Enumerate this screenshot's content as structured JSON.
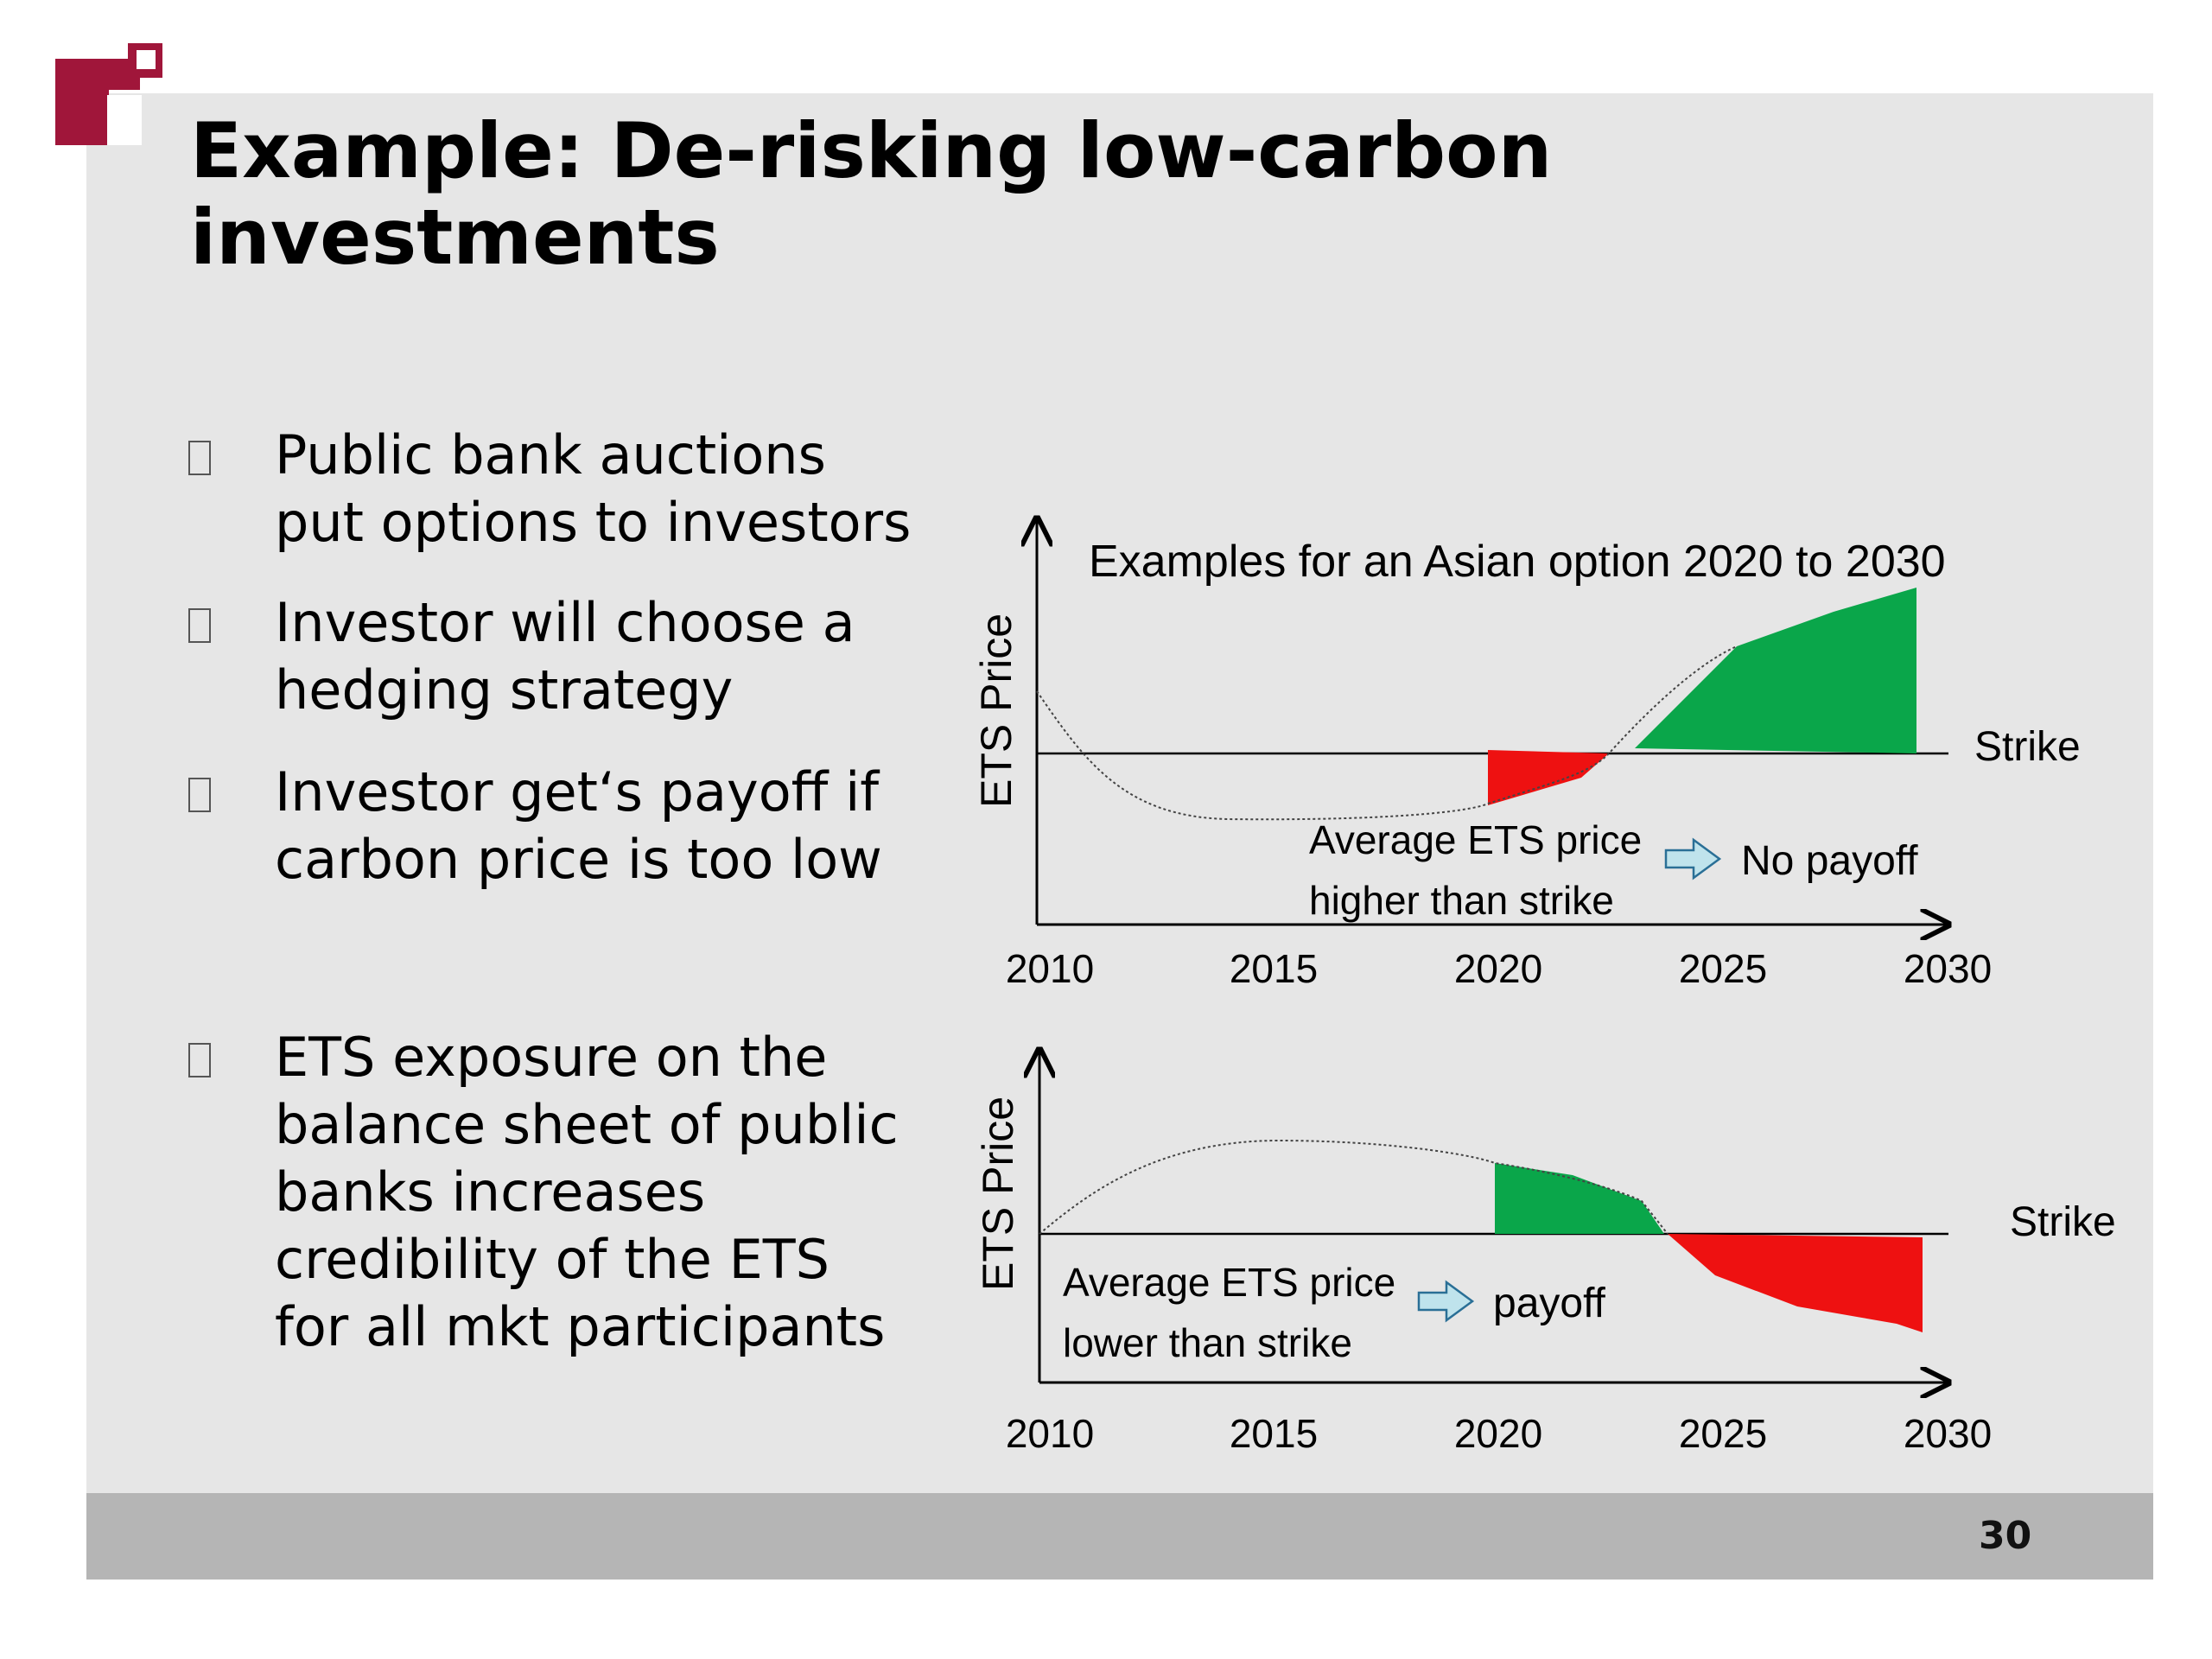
{
  "slide": {
    "title": "Example: De-risking low-carbon investments",
    "title_line1": "Example: De-risking low-carbon",
    "title_line2": "investments",
    "page_number": "30",
    "colors": {
      "brand": "#a0163a",
      "background": "#e6e6e6",
      "footer": "#b5b5b5",
      "gain": "#0aa64a",
      "loss": "#ee1111"
    }
  },
  "bullets": [
    {
      "text": "Public bank auctions\nput options to investors"
    },
    {
      "text": "Investor will choose a\nhedging strategy"
    },
    {
      "text": "Investor get‘s payoff if\ncarbon price is too low"
    },
    {
      "text": "ETS exposure on the\nbalance sheet of public\nbanks increases\ncredibility of the ETS\nfor all mkt participants"
    }
  ],
  "charts": {
    "top": {
      "title": "Examples for an Asian option 2020 to 2030",
      "ylabel": "ETS Price",
      "strike_label": "Strike",
      "annotation_line1": "Average ETS price",
      "annotation_line2": "higher than strike",
      "result": "No payoff",
      "x_ticks": [
        "2010",
        "2015",
        "2020",
        "2025",
        "2030"
      ]
    },
    "bottom": {
      "ylabel": "ETS Price",
      "strike_label": "Strike",
      "annotation_line1": "Average ETS price",
      "annotation_line2": "lower than strike",
      "result": "payoff",
      "x_ticks": [
        "2010",
        "2015",
        "2020",
        "2025",
        "2030"
      ]
    }
  },
  "chart_data": [
    {
      "type": "line",
      "title": "Examples for an Asian option 2020 to 2030",
      "xlabel": "",
      "ylabel": "ETS Price",
      "xlim": [
        2010,
        2030
      ],
      "x_ticks": [
        2010,
        2015,
        2020,
        2025,
        2030
      ],
      "strike": 0,
      "series": [
        {
          "x": [
            2010,
            2012,
            2014,
            2016,
            2018,
            2020,
            2022,
            2023,
            2025,
            2027,
            2030
          ],
          "values": [
            0.35,
            -0.15,
            -0.38,
            -0.42,
            -0.36,
            -0.3,
            -0.15,
            0.1,
            0.6,
            0.85,
            1.0
          ]
        }
      ],
      "shaded": [
        {
          "from": 2020,
          "to": 2023,
          "side": "below strike",
          "color": "#ee1111"
        },
        {
          "from": 2023,
          "to": 2030,
          "side": "above strike",
          "color": "#0aa64a"
        }
      ],
      "legend": "none",
      "grid": false
    },
    {
      "type": "line",
      "title": "",
      "xlabel": "",
      "ylabel": "ETS Price",
      "xlim": [
        2010,
        2030
      ],
      "x_ticks": [
        2010,
        2015,
        2020,
        2025,
        2030
      ],
      "strike": 0,
      "series": [
        {
          "x": [
            2010,
            2013,
            2015,
            2018,
            2020,
            2022,
            2024,
            2025,
            2027,
            2030
          ],
          "values": [
            0,
            0.45,
            0.55,
            0.52,
            0.48,
            0.35,
            0,
            -0.25,
            -0.45,
            -0.6
          ]
        }
      ],
      "shaded": [
        {
          "from": 2020,
          "to": 2024,
          "side": "above strike",
          "color": "#0aa64a"
        },
        {
          "from": 2024,
          "to": 2030,
          "side": "below strike",
          "color": "#ee1111"
        }
      ],
      "legend": "none",
      "grid": false
    }
  ]
}
